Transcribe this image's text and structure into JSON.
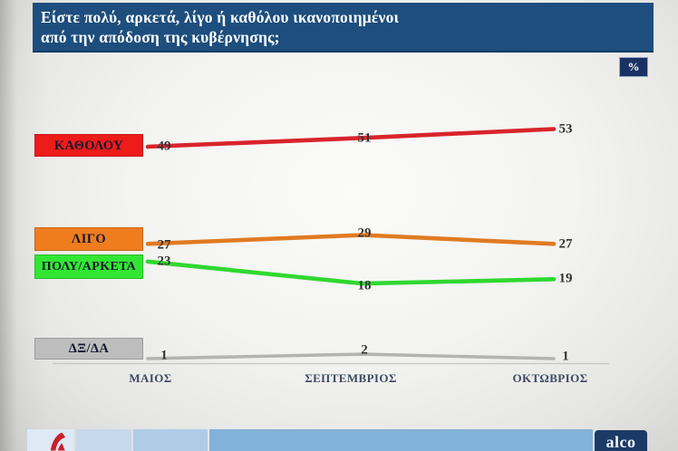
{
  "title": {
    "line1": "Είστε πολύ, αρκετά, λίγο ή καθόλου ικανοποιημένοι",
    "line2": "από την απόδοση της κυβέρνησης;"
  },
  "percent_badge": "%",
  "chart_data": {
    "type": "line",
    "categories": [
      "ΜΑΙΟΣ",
      "ΣΕΠΤΕΜΒΡΙΟΣ",
      "ΟΚΤΩΒΡΙΟΣ"
    ],
    "series": [
      {
        "name": "ΚΑΘΟΛΟΥ",
        "values": [
          49,
          51,
          53
        ],
        "line_color": "#d8242c",
        "label_bg": "#ee1b1b"
      },
      {
        "name": "ΛΙΓΟ",
        "values": [
          27,
          29,
          27
        ],
        "line_color": "#e07b22",
        "label_bg": "#ef7d1f"
      },
      {
        "name": "ΠΟΛΥ/ΑΡΚΕΤΑ",
        "values": [
          23,
          18,
          19
        ],
        "line_color": "#2fd82f",
        "label_bg": "#33e633"
      },
      {
        "name": "ΔΞ/ΔΑ",
        "values": [
          1,
          2,
          1
        ],
        "line_color": "#b3b3b3",
        "label_bg": "#bdbdbd"
      }
    ],
    "ylim": [
      0,
      60
    ],
    "grid": false,
    "legend_position": "left-inline-boxes",
    "xlabel": "",
    "ylabel": ""
  },
  "footer": {
    "alpha_icon": "alpha-tv-icon",
    "alco_label": "alco"
  },
  "colors": {
    "title_bar": "#1d4e7d",
    "percent_badge": "#1a3263",
    "alco_box": "#1b3a66",
    "axis_line": "#c9c9c9"
  }
}
